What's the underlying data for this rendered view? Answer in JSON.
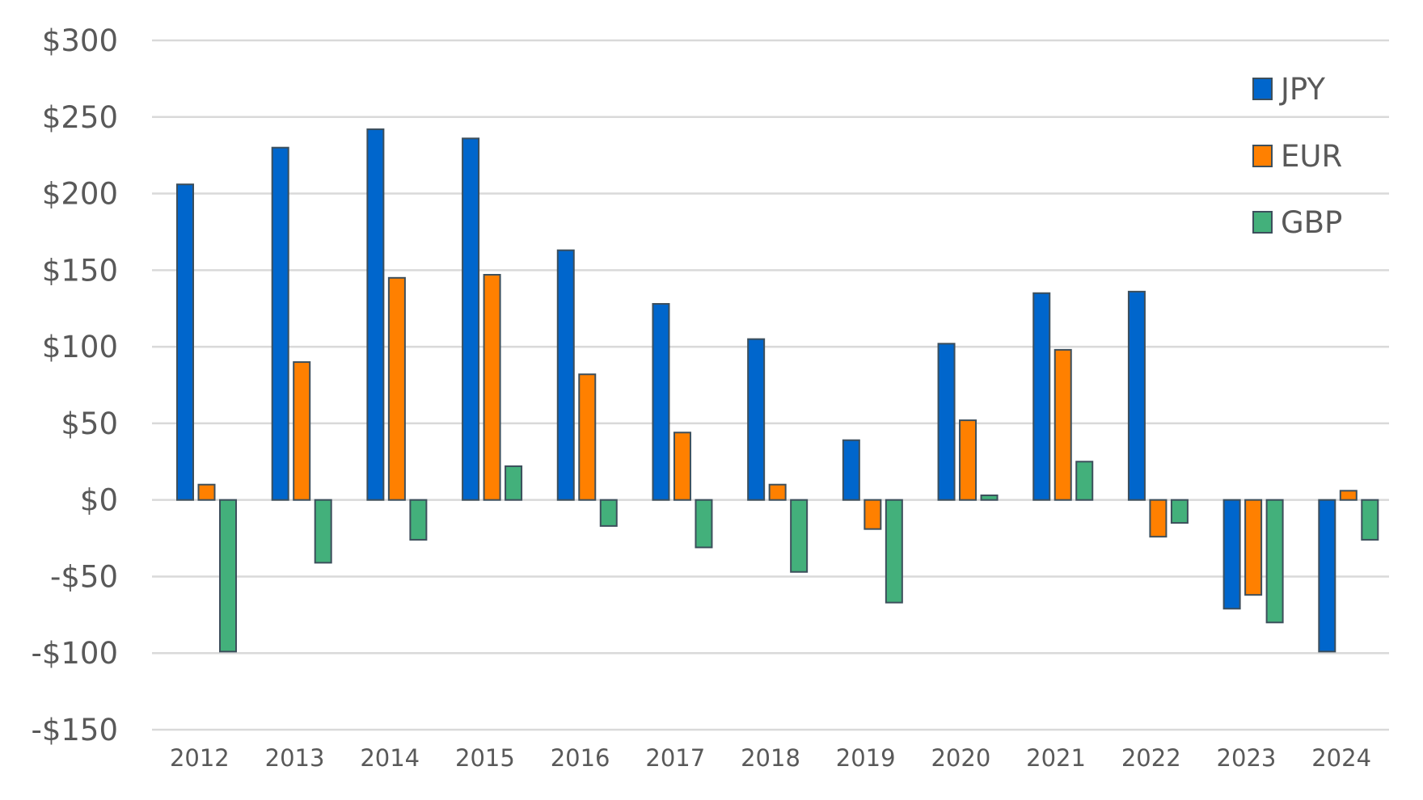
{
  "chart_data": {
    "type": "bar",
    "title": "",
    "xlabel": "",
    "ylabel": "",
    "categories": [
      "2012",
      "2013",
      "2014",
      "2015",
      "2016",
      "2017",
      "2018",
      "2019",
      "2020",
      "2021",
      "2022",
      "2023",
      "2024"
    ],
    "series": [
      {
        "name": "JPY",
        "color": "#0066CC",
        "values": [
          206,
          230,
          242,
          236,
          163,
          128,
          105,
          39,
          102,
          135,
          136,
          -71,
          -99
        ]
      },
      {
        "name": "EUR",
        "color": "#FF8000",
        "values": [
          10,
          90,
          145,
          147,
          82,
          44,
          10,
          -19,
          52,
          98,
          -24,
          -62,
          6
        ]
      },
      {
        "name": "GBP",
        "color": "#43B07B",
        "values": [
          -99,
          -41,
          -26,
          22,
          -17,
          -31,
          -47,
          -67,
          3,
          25,
          -15,
          -80,
          -26
        ]
      }
    ],
    "ylim": [
      -150,
      300
    ],
    "yticks": [
      300,
      250,
      200,
      150,
      100,
      50,
      0,
      -50,
      -100,
      -150
    ],
    "ytick_labels": [
      "$300",
      "$250",
      "$200",
      "$150",
      "$100",
      "$50",
      "$0",
      "-$50",
      "-$100",
      "-$150"
    ],
    "grid": true,
    "legend_position": "top-right",
    "bar_edge_color": "#3D4F5C",
    "grid_color": "#D9D9D9"
  }
}
